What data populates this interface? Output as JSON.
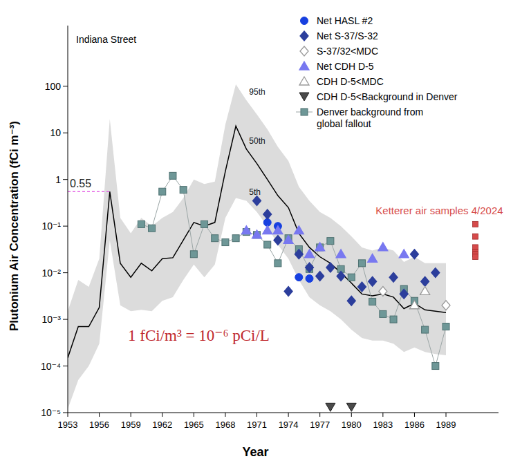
{
  "chart_data": {
    "type": "scatter",
    "title": "Indiana Street",
    "x_label": "Year",
    "y_label": "Plutonium Air Concentration (fCi m⁻³)",
    "log": "y",
    "legend": "top-right",
    "xlim": [
      1953,
      1994
    ],
    "xticks": [
      1953,
      1956,
      1959,
      1962,
      1965,
      1968,
      1971,
      1974,
      1977,
      1980,
      1983,
      1986,
      1989
    ],
    "ylim": [
      1e-05,
      2000
    ],
    "yticks": [
      {
        "value": 1e-05,
        "label": "10⁻⁵"
      },
      {
        "value": 0.0001,
        "label": "10⁻⁴"
      },
      {
        "value": 0.001,
        "label": "10⁻³"
      },
      {
        "value": 0.01,
        "label": "10⁻²"
      },
      {
        "value": 0.1,
        "label": "10⁻¹"
      },
      1,
      10,
      100
    ],
    "band": {
      "color": "#dcdcdc",
      "x": [
        1953,
        1954,
        1955,
        1956,
        1957,
        1958,
        1959,
        1960,
        1961,
        1962,
        1963,
        1964,
        1965,
        1966,
        1967,
        1968,
        1969,
        1970,
        1971,
        1972,
        1973,
        1974,
        1975,
        1976,
        1977,
        1978,
        1979,
        1980,
        1981,
        1982,
        1983,
        1984,
        1985,
        1986,
        1987,
        1988,
        1989
      ],
      "upper": {
        "name": "95th",
        "values": [
          0.0015,
          0.007,
          0.005,
          0.02,
          20,
          0.15,
          0.07,
          0.15,
          0.1,
          0.15,
          0.2,
          0.4,
          1.0,
          0.8,
          0.9,
          15,
          110,
          50,
          25,
          12,
          5,
          2.5,
          0.7,
          0.35,
          0.2,
          0.15,
          0.1,
          0.06,
          0.035,
          0.03,
          0.035,
          0.03,
          0.017,
          0.022,
          0.016,
          0.016,
          0.016
        ]
      },
      "median": {
        "name": "50th",
        "color": "#000000",
        "values": [
          0.00015,
          0.0007,
          0.0007,
          0.0018,
          0.55,
          0.016,
          0.008,
          0.016,
          0.011,
          0.02,
          0.021,
          0.05,
          0.12,
          0.1,
          0.12,
          1.5,
          14,
          4.5,
          2.2,
          1.0,
          0.45,
          0.25,
          0.07,
          0.035,
          0.022,
          0.016,
          0.01,
          0.006,
          0.0035,
          0.0032,
          0.0035,
          0.003,
          0.0017,
          0.0022,
          0.0016,
          0.0015,
          0.0014
        ]
      },
      "lower": {
        "name": "5th",
        "values": [
          1.2e-05,
          5e-05,
          0.0001,
          0.0003,
          0.05,
          0.002,
          0.0015,
          0.0016,
          0.0015,
          0.0025,
          0.003,
          0.007,
          0.015,
          0.008,
          0.015,
          0.15,
          0.4,
          0.35,
          0.2,
          0.1,
          0.04,
          0.02,
          0.007,
          0.003,
          0.002,
          0.0015,
          0.001,
          0.0006,
          0.0004,
          0.00035,
          0.00035,
          0.0003,
          0.0002,
          0.00025,
          0.0002,
          0.00018,
          0.00017
        ]
      }
    },
    "series": [
      {
        "name": "Net HASL #2",
        "type": "scatter",
        "marker": "circle",
        "color": "#1740e0",
        "x": [
          1972,
          1973,
          1975,
          1976
        ],
        "values": [
          0.12,
          0.1,
          0.008,
          0.0075
        ]
      },
      {
        "name": "Net S-37/S-32",
        "type": "scatter",
        "marker": "diamond",
        "color": "#2c3e9c",
        "x": [
          1971,
          1972,
          1973,
          1974,
          1975,
          1976,
          1977,
          1978,
          1979,
          1980,
          1981,
          1982,
          1984,
          1985,
          1986,
          1987,
          1988
        ],
        "values": [
          0.35,
          0.18,
          0.05,
          0.004,
          0.025,
          0.013,
          0.0085,
          0.013,
          0.0085,
          0.0025,
          0.005,
          0.0065,
          0.008,
          0.0035,
          0.025,
          0.0065,
          0.01
        ]
      },
      {
        "name": "S-37/32<MDC",
        "type": "scatter",
        "marker": "open_diamond",
        "color": "#9a9a9a",
        "x": [
          1983,
          1989
        ],
        "values": [
          0.004,
          0.002
        ]
      },
      {
        "name": "Net CDH D-5",
        "type": "scatter",
        "marker": "triangle",
        "color": "#7878f0",
        "x": [
          1970,
          1971,
          1972,
          1973,
          1974,
          1975,
          1976,
          1977,
          1979,
          1982,
          1983,
          1985
        ],
        "values": [
          0.08,
          0.065,
          0.08,
          0.08,
          0.05,
          0.08,
          0.025,
          0.035,
          0.025,
          0.02,
          0.035,
          0.025
        ]
      },
      {
        "name": "CDH D-5<MDC",
        "type": "scatter",
        "marker": "open_triangle",
        "color": "#9a9a9a",
        "x": [
          1986,
          1987
        ],
        "values": [
          0.002,
          0.004
        ]
      },
      {
        "name": "CDH D-5<Background in Denver",
        "type": "scatter",
        "marker": "down_triangle",
        "color": "#4a4a4a",
        "x": [
          1978,
          1980
        ],
        "values": [
          1.3e-05,
          1.3e-05
        ]
      },
      {
        "name": "Denver background from global fallout",
        "type": "line",
        "marker": "square",
        "line_style": "solid",
        "color": "#6e9797",
        "x": [
          1960,
          1961,
          1962,
          1963,
          1964,
          1965,
          1966,
          1967,
          1968,
          1969,
          1970,
          1971,
          1972,
          1973,
          1974,
          1975,
          1976,
          1977,
          1978,
          1979,
          1980,
          1981,
          1982,
          1983,
          1984,
          1985,
          1986,
          1987,
          1988,
          1989
        ],
        "values": [
          0.11,
          0.09,
          0.55,
          1.2,
          0.6,
          0.025,
          0.11,
          0.055,
          0.045,
          0.055,
          0.075,
          0.065,
          0.04,
          0.016,
          0.055,
          0.032,
          0.012,
          0.035,
          0.048,
          0.012,
          0.008,
          0.016,
          0.0024,
          0.0013,
          0.001,
          0.0045,
          0.0025,
          0.0006,
          0.0001,
          0.0007
        ]
      }
    ],
    "extra_points": {
      "label": "Ketterer air samples 4/2024",
      "marker": "square",
      "color": "#d64a4a",
      "x": [
        1991.8,
        1991.8,
        1991.8,
        1991.8,
        1991.8,
        1991.8
      ],
      "values": [
        0.11,
        0.06,
        0.035,
        0.028,
        0.025,
        0.022
      ]
    },
    "annotations": [
      {
        "text": "0.55",
        "y": 0.55,
        "x": [
          1953,
          1957
        ],
        "color": "#e040e0"
      },
      {
        "text": "1 fCi/m³ = 10⁻⁶ pCi/L",
        "color": "#c0282d"
      }
    ]
  }
}
